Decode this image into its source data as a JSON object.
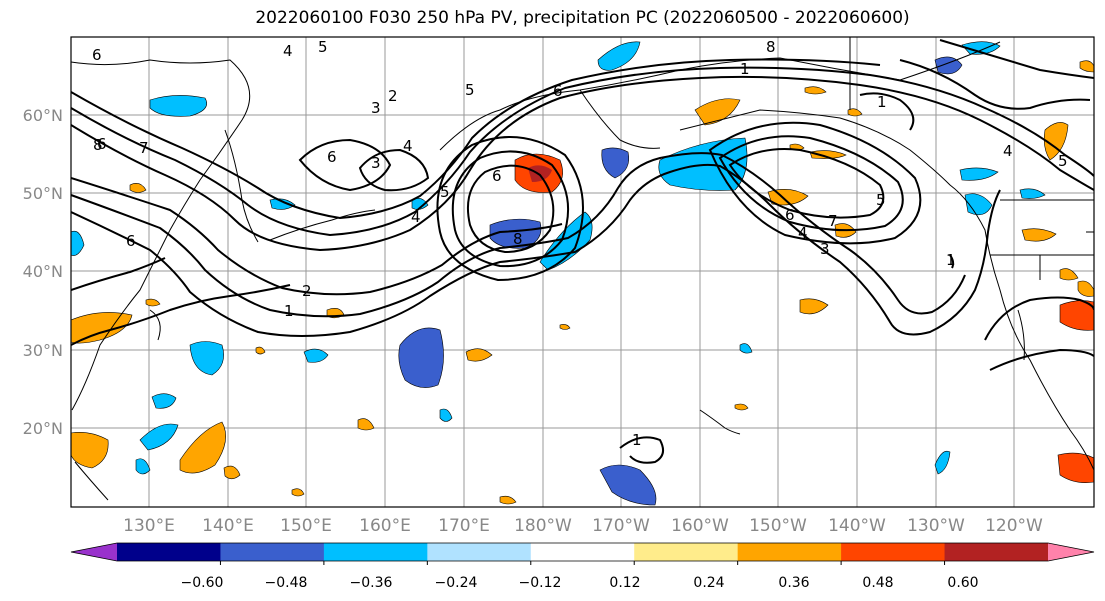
{
  "title": "2022060100 F030 250 hPa PV, precipitation PC (2022060500 - 2022060600)",
  "lat_labels": [
    "60°N",
    "50°N",
    "40°N",
    "30°N",
    "20°N"
  ],
  "lon_labels": [
    "130°E",
    "140°E",
    "150°E",
    "160°E",
    "170°E",
    "180°W",
    "170°W",
    "160°W",
    "150°W",
    "140°W",
    "130°W",
    "120°W"
  ],
  "colorbar": {
    "colors": [
      "#9932cc",
      "#00008b",
      "#3a5fcd",
      "#00bfff",
      "#b0e2ff",
      "#ffffff",
      "#ffec8b",
      "#ffa500",
      "#ff4500",
      "#b22222",
      "#ff82ab"
    ],
    "tick_labels": [
      "−0.60",
      "−0.48",
      "−0.36",
      "−0.24",
      "−0.12",
      "0.12",
      "0.24",
      "0.36",
      "0.48",
      "0.60"
    ]
  },
  "contour_labels": [
    "6",
    "5",
    "4",
    "8",
    "1",
    "7",
    "6",
    "2",
    "3",
    "5",
    "6",
    "4",
    "3",
    "6",
    "2",
    "1",
    "8",
    "6",
    "5",
    "4",
    "1",
    "4",
    "5",
    "6",
    "7",
    "4",
    "5",
    "3",
    "1",
    "6",
    "8",
    "1"
  ],
  "chart_data": {
    "type": "map",
    "fields": [
      "250 hPa PV (contours)",
      "precipitation PC (shaded)"
    ],
    "lon_range": [
      "120°E",
      "115°W"
    ],
    "lat_range": [
      10,
      70
    ],
    "contour_levels_PV": [
      1,
      2,
      3,
      4,
      5,
      6,
      7,
      8
    ],
    "shading_levels": [
      -0.6,
      -0.48,
      -0.36,
      -0.24,
      -0.12,
      0.12,
      0.24,
      0.36,
      0.48,
      0.6
    ],
    "grid": true
  }
}
